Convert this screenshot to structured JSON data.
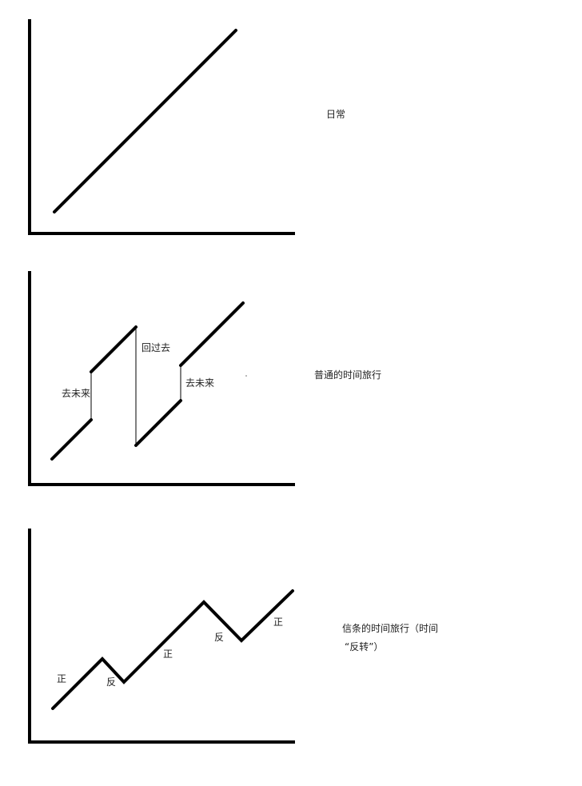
{
  "panels": [
    {
      "caption": "日常",
      "labels": []
    },
    {
      "caption": "普通的时间旅行",
      "labels": [
        "去未来",
        "回过去",
        "去未来"
      ]
    },
    {
      "caption_lines": [
        "信条的时间旅行（时间",
        "“反转”）"
      ],
      "labels": [
        "正",
        "反",
        "正",
        "反",
        "正"
      ]
    }
  ],
  "colors": {
    "stroke": "#000000",
    "text": "#222222",
    "background": "#ffffff"
  }
}
